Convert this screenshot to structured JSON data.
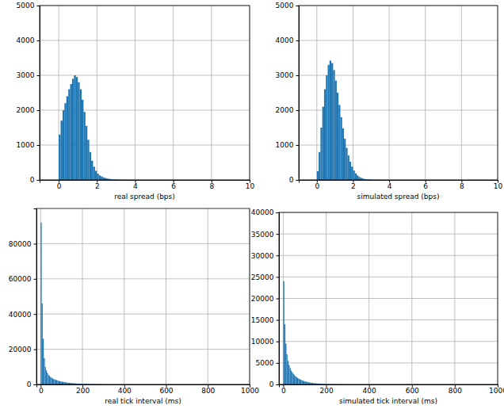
{
  "chart_data": [
    {
      "type": "histogram",
      "xlabel": "real spread (bps)",
      "color": "#1f77b4",
      "grid": true,
      "xlim": [
        -1,
        10
      ],
      "xticks": [
        0,
        2,
        4,
        6,
        8,
        10
      ],
      "ylim": [
        0,
        5000
      ],
      "yticks": [
        0,
        1000,
        2000,
        3000,
        4000,
        5000
      ],
      "bins": [
        0,
        0.1,
        0.2,
        0.3,
        0.4,
        0.5,
        0.6,
        0.7,
        0.8,
        0.9,
        1,
        1.1,
        1.2,
        1.3,
        1.4,
        1.5,
        1.6,
        1.7,
        1.8,
        1.9,
        2,
        2.1,
        2.2,
        2.3,
        2.4,
        2.5,
        2.6,
        2.7,
        2.8,
        2.9,
        3,
        3.1,
        3.2,
        3.3,
        3.4,
        3.5,
        3.6,
        3.7,
        3.8,
        3.9,
        4
      ],
      "values": [
        1300,
        1700,
        2000,
        2200,
        2400,
        2600,
        2750,
        2900,
        3000,
        2950,
        2800,
        2600,
        2300,
        1950,
        1550,
        1150,
        800,
        550,
        380,
        260,
        180,
        130,
        100,
        75,
        55,
        40,
        30,
        22,
        16,
        12,
        9,
        7,
        5,
        4,
        3,
        2,
        2,
        1,
        1,
        1
      ]
    },
    {
      "type": "histogram",
      "xlabel": "simulated spread (bps)",
      "color": "#1f77b4",
      "grid": true,
      "xlim": [
        -1,
        10
      ],
      "xticks": [
        0,
        2,
        4,
        6,
        8,
        10
      ],
      "ylim": [
        0,
        5000
      ],
      "yticks": [
        0,
        1000,
        2000,
        3000,
        4000,
        5000
      ],
      "bins": [
        0,
        0.1,
        0.2,
        0.3,
        0.4,
        0.5,
        0.6,
        0.7,
        0.8,
        0.9,
        1,
        1.1,
        1.2,
        1.3,
        1.4,
        1.5,
        1.6,
        1.7,
        1.8,
        1.9,
        2,
        2.1,
        2.2,
        2.3,
        2.4,
        2.5,
        2.6,
        2.7,
        2.8,
        2.9,
        3,
        3.1,
        3.2,
        3.3,
        3.4,
        3.5,
        3.6,
        3.7,
        3.8,
        3.9,
        4
      ],
      "values": [
        250,
        800,
        1500,
        2100,
        2600,
        3000,
        3300,
        3420,
        3350,
        3150,
        2850,
        2500,
        2150,
        1800,
        1480,
        1180,
        920,
        700,
        520,
        380,
        270,
        190,
        130,
        90,
        60,
        40,
        28,
        20,
        14,
        10,
        7,
        5,
        4,
        3,
        2,
        2,
        1,
        1,
        1,
        1
      ]
    },
    {
      "type": "histogram",
      "xlabel": "real tick interval (ms)",
      "color": "#1f77b4",
      "grid": true,
      "xlim": [
        -20,
        1000
      ],
      "xticks": [
        0,
        200,
        400,
        600,
        800,
        1000
      ],
      "ylim": [
        0,
        100000
      ],
      "yticks": [
        0,
        20000,
        40000,
        60000,
        80000
      ],
      "bins": [
        0,
        5,
        10,
        15,
        20,
        25,
        30,
        35,
        40,
        45,
        50,
        55,
        60,
        65,
        70,
        75,
        80,
        85,
        90,
        95,
        100,
        105,
        110,
        115,
        120,
        125,
        130,
        135,
        140,
        145,
        150,
        155,
        160,
        165,
        170,
        175,
        180,
        185,
        190,
        195,
        200,
        205,
        210,
        215,
        220,
        225,
        230,
        235,
        240,
        245,
        250,
        255,
        260,
        265,
        270,
        275,
        280,
        285,
        290,
        295,
        300
      ],
      "values": [
        92000,
        46000,
        26000,
        15000,
        10000,
        8000,
        6500,
        5500,
        4800,
        4200,
        3800,
        3400,
        3100,
        2800,
        2600,
        2400,
        2200,
        2000,
        1850,
        1700,
        1550,
        1450,
        1350,
        1250,
        1150,
        1050,
        980,
        910,
        850,
        790,
        730,
        680,
        630,
        580,
        540,
        500,
        460,
        420,
        390,
        360,
        330,
        300,
        280,
        260,
        240,
        220,
        200,
        180,
        160,
        150,
        140,
        130,
        120,
        110,
        100,
        90,
        80,
        70,
        60,
        50
      ]
    },
    {
      "type": "histogram",
      "xlabel": "simulated tick interval (ms)",
      "color": "#1f77b4",
      "grid": true,
      "xlim": [
        -20,
        1000
      ],
      "xticks": [
        0,
        200,
        400,
        600,
        800,
        1000
      ],
      "ylim": [
        0,
        40000
      ],
      "yticks": [
        0,
        5000,
        10000,
        15000,
        20000,
        25000,
        30000,
        35000,
        40000
      ],
      "bins": [
        0,
        5,
        10,
        15,
        20,
        25,
        30,
        35,
        40,
        45,
        50,
        55,
        60,
        65,
        70,
        75,
        80,
        85,
        90,
        95,
        100,
        105,
        110,
        115,
        120,
        125,
        130,
        135,
        140,
        145,
        150,
        155,
        160,
        165,
        170,
        175,
        180,
        185,
        190,
        195,
        200,
        205,
        210,
        215,
        220,
        225,
        230,
        235,
        240,
        245,
        250,
        255,
        260,
        265,
        270,
        275,
        280,
        285,
        290,
        295,
        300
      ],
      "values": [
        24000,
        14000,
        9500,
        7000,
        5500,
        4500,
        3800,
        3200,
        2800,
        2450,
        2150,
        1900,
        1700,
        1500,
        1350,
        1200,
        1080,
        970,
        870,
        780,
        700,
        630,
        570,
        510,
        460,
        415,
        375,
        340,
        305,
        275,
        250,
        225,
        200,
        180,
        160,
        145,
        130,
        115,
        100,
        90,
        80,
        70,
        62,
        55,
        48,
        42,
        36,
        30,
        25,
        20,
        17,
        14,
        12,
        10,
        8,
        7,
        6,
        5,
        4,
        3
      ]
    }
  ]
}
